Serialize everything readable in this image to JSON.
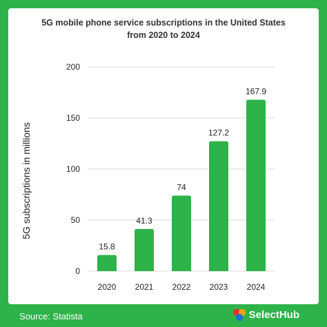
{
  "title_line1": "5G mobile phone service subscriptions in the United States",
  "title_line2": "from 2020 to 2024",
  "source": "Source: Statista",
  "brand": "SelectHub",
  "colors": {
    "bar": "#2db34a",
    "frame": "#2db34a",
    "grid": "#d9d9d9"
  },
  "chart_data": {
    "type": "bar",
    "title": "5G mobile phone service subscriptions in the United States from 2020 to 2024",
    "xlabel": "",
    "ylabel": "5G subscriptions in millions",
    "categories": [
      "2020",
      "2021",
      "2022",
      "2023",
      "2024"
    ],
    "values": [
      15.8,
      41.3,
      74,
      127.2,
      167.9
    ],
    "value_labels": [
      "15.8",
      "41.3",
      "74",
      "127.2",
      "167.9"
    ],
    "ylim": [
      0,
      200
    ],
    "yticks": [
      0,
      50,
      100,
      150,
      200
    ],
    "grid": true,
    "legend": "none"
  }
}
